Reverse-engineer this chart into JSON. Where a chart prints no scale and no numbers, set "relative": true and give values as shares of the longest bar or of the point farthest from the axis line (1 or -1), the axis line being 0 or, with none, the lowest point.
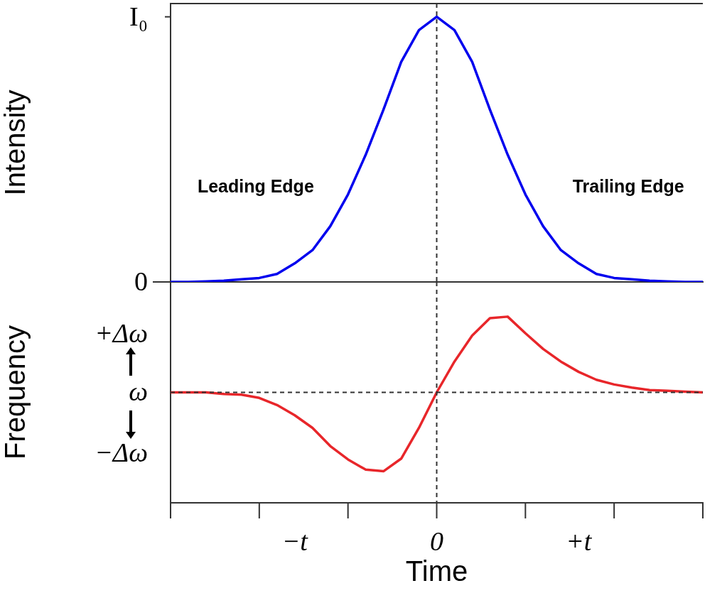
{
  "chart_data": [
    {
      "type": "line",
      "ylabel": "Intensity",
      "relative": true,
      "categories": [
        null,
        null,
        null,
        null,
        null,
        null,
        null,
        null,
        null,
        null,
        null,
        null,
        null,
        null,
        null,
        null,
        null,
        null,
        null,
        null,
        null,
        null,
        null,
        null,
        null,
        null,
        null,
        null,
        null,
        null,
        null
      ],
      "series": [
        {
          "color": "#0000ee",
          "values": [
            0,
            0,
            0.002,
            0.005,
            0.01,
            0.015,
            0.03,
            0.07,
            0.12,
            0.21,
            0.33,
            0.48,
            0.65,
            0.83,
            0.95,
            1,
            0.95,
            0.83,
            0.65,
            0.48,
            0.33,
            0.21,
            0.12,
            0.07,
            0.03,
            0.015,
            0.01,
            0.005,
            0.002,
            0,
            0
          ]
        }
      ],
      "ref_lines": [
        {
          "axis": "x",
          "value": "0",
          "color": "#333333",
          "line_style": "dashed"
        }
      ],
      "annotations": [
        "I₀",
        "0",
        "Leading Edge",
        "Trailing Edge"
      ]
    },
    {
      "type": "line",
      "ylabel": "Frequency",
      "xlabel": "Time",
      "relative": true,
      "categories": [
        null,
        null,
        null,
        null,
        null,
        null,
        null,
        "−t",
        null,
        null,
        null,
        null,
        null,
        null,
        null,
        "0",
        null,
        null,
        null,
        null,
        null,
        null,
        null,
        "+t",
        null,
        null,
        null,
        null,
        null,
        null,
        null
      ],
      "series": [
        {
          "color": "#e8262a",
          "values": [
            0,
            0,
            0,
            -0.02,
            -0.03,
            -0.07,
            -0.16,
            -0.29,
            -0.45,
            -0.68,
            -0.85,
            -0.98,
            -1,
            -0.84,
            -0.45,
            0,
            0.39,
            0.72,
            0.94,
            0.96,
            0.75,
            0.55,
            0.39,
            0.26,
            0.16,
            0.1,
            0.06,
            0.03,
            0.02,
            0.01,
            0
          ]
        }
      ],
      "ref_lines": [
        {
          "axis": "x",
          "value": "0",
          "color": "#333333",
          "line_style": "dashed"
        },
        {
          "axis": "y",
          "value": 0,
          "color": "#333333",
          "line_style": "dashed"
        }
      ],
      "annotations": [
        "+Δω",
        "ω",
        "−Δω"
      ]
    }
  ]
}
